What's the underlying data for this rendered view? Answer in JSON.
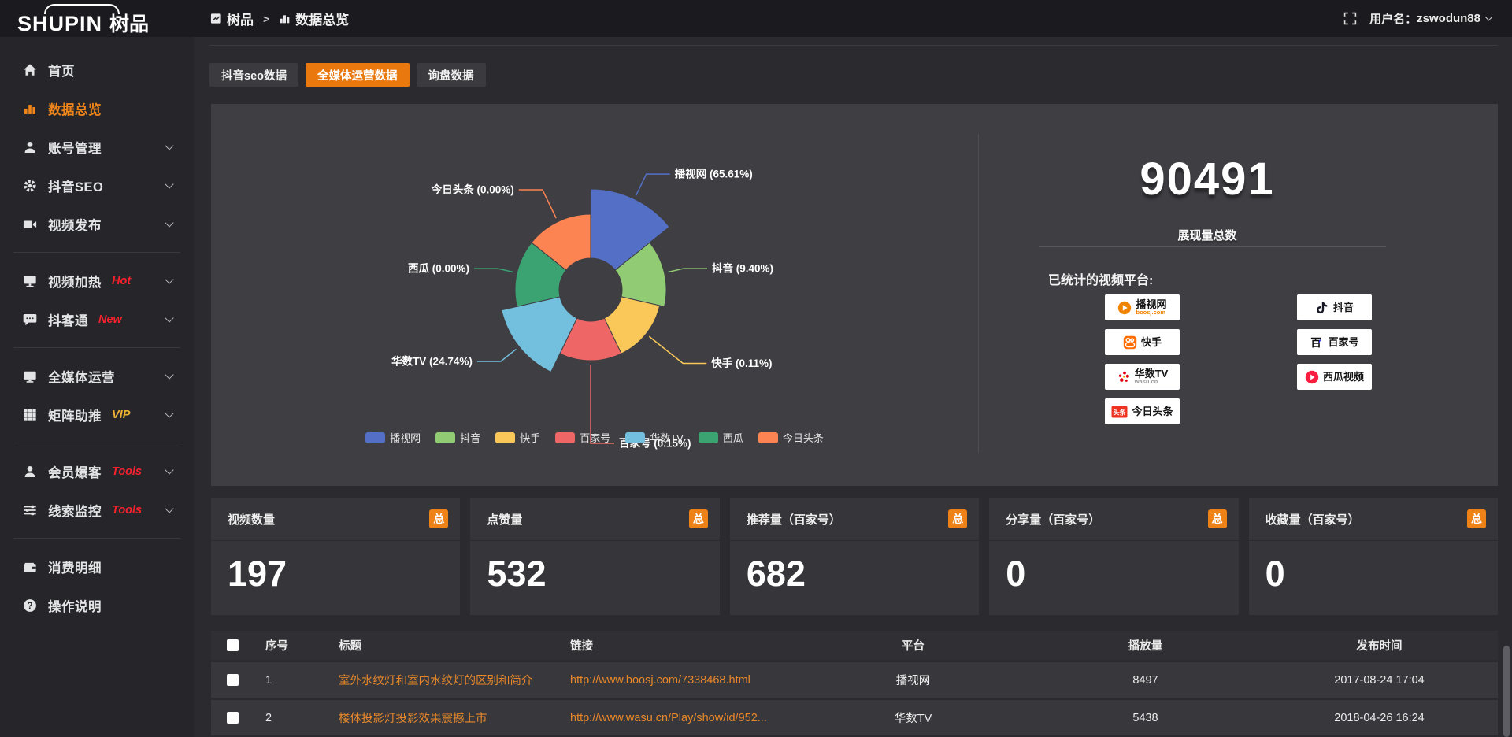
{
  "topbar": {
    "logo_main": "SHUPIN",
    "logo_suffix": "树品",
    "breadcrumb": [
      {
        "label": "树品",
        "icon": "chart-square-icon"
      },
      {
        "label": "数据总览",
        "icon": "bar-chart-icon"
      }
    ],
    "breadcrumb_separator": ">",
    "username_label": "用户名：",
    "username": "zswodun88"
  },
  "sidebar": {
    "items": [
      {
        "label": "首页",
        "icon": "home"
      },
      {
        "label": "数据总览",
        "icon": "bar-chart",
        "active": true
      },
      {
        "label": "账号管理",
        "icon": "user",
        "chevron": true
      },
      {
        "label": "抖音SEO",
        "icon": "gear",
        "chevron": true
      },
      {
        "label": "视频发布",
        "icon": "camera",
        "chevron": true,
        "divider_after": true
      },
      {
        "label": "视频加热",
        "icon": "heat-screen",
        "badge": "Hot",
        "badge_color": "#f5222d",
        "chevron": true
      },
      {
        "label": "抖客通",
        "icon": "chat",
        "badge": "New",
        "badge_color": "#f5222d",
        "chevron": true,
        "divider_after": true
      },
      {
        "label": "全媒体运营",
        "icon": "monitor",
        "chevron": true
      },
      {
        "label": "矩阵助推",
        "icon": "grid",
        "badge": "VIP",
        "badge_color": "#e9b235",
        "chevron": true,
        "divider_after": true
      },
      {
        "label": "会员爆客",
        "icon": "user",
        "badge": "Tools",
        "badge_color": "#f5222d",
        "chevron": true
      },
      {
        "label": "线索监控",
        "icon": "sliders",
        "badge": "Tools",
        "badge_color": "#f5222d",
        "chevron": true,
        "divider_after": true
      },
      {
        "label": "消费明细",
        "icon": "wallet"
      },
      {
        "label": "操作说明",
        "icon": "question"
      }
    ]
  },
  "tabs": [
    {
      "label": "抖音seo数据",
      "active": false
    },
    {
      "label": "全媒体运营数据",
      "active": true
    },
    {
      "label": "询盘数据",
      "active": false
    }
  ],
  "chart_data": {
    "type": "pie",
    "subtype": "nightingale-rose",
    "hole_radius": 40,
    "legend_position": "bottom",
    "slices": [
      {
        "name": "播视网",
        "percent": "65.61",
        "color": "#5470c6",
        "radius": 128,
        "label_ext": 30
      },
      {
        "name": "抖音",
        "percent": "9.40",
        "color": "#91cc75",
        "radius": 96,
        "label_ext": 20
      },
      {
        "name": "快手",
        "percent": "0.11",
        "color": "#fac858",
        "radius": 90,
        "label_ext": 55
      },
      {
        "name": "百家号",
        "percent": "0.15",
        "color": "#ee6666",
        "radius": 90,
        "label_ext": 100
      },
      {
        "name": "华数TV",
        "percent": "24.74",
        "color": "#73c0de",
        "radius": 116,
        "label_ext": 25
      },
      {
        "name": "西瓜",
        "percent": "0.00",
        "color": "#3ba272",
        "radius": 96,
        "label_ext": 20
      },
      {
        "name": "今日头条",
        "percent": "0.00",
        "color": "#fc8452",
        "radius": 96,
        "label_ext": 40
      }
    ],
    "legend": [
      "播视网",
      "抖音",
      "快手",
      "百家号",
      "华数TV",
      "西瓜",
      "今日头条"
    ]
  },
  "summary": {
    "value": "90491",
    "caption": "展现量总数",
    "platforms_title": "已统计的视频平台:",
    "platforms_col1": [
      {
        "name": "播视网",
        "sub": "boosj.com",
        "sub_color": "#f08300",
        "icon": "boosj-logo"
      },
      {
        "name": "快手",
        "icon": "kuaishou-logo"
      },
      {
        "name": "华数TV",
        "sub": "wasu.cn",
        "sub_color": "#999999",
        "icon": "wasu-logo"
      },
      {
        "name": "今日头条",
        "icon": "toutiao-logo",
        "icon_text": "头条"
      }
    ],
    "platforms_col2": [
      {
        "name": "抖音",
        "icon": "douyin-logo"
      },
      {
        "name": "百家号",
        "icon": "baijia-logo",
        "icon_text": "百"
      },
      {
        "name": "西瓜视频",
        "icon": "xigua-logo"
      }
    ]
  },
  "stat_cards": [
    {
      "label": "视频数量",
      "badge": "总",
      "value": "197"
    },
    {
      "label": "点赞量",
      "badge": "总",
      "value": "532"
    },
    {
      "label": "推荐量（百家号）",
      "badge": "总",
      "value": "682"
    },
    {
      "label": "分享量（百家号）",
      "badge": "总",
      "value": "0"
    },
    {
      "label": "收藏量（百家号）",
      "badge": "总",
      "value": "0"
    }
  ],
  "table": {
    "headers": [
      "",
      "序号",
      "标题",
      "链接",
      "平台",
      "播放量",
      "发布时间"
    ],
    "rows": [
      {
        "seq": "1",
        "title": "室外水纹灯和室内水纹灯的区别和简介",
        "link": "http://www.boosj.com/7338468.html",
        "platform": "播视网",
        "views": "8497",
        "time": "2017-08-24 17:04"
      },
      {
        "seq": "2",
        "title": "楼体投影灯投影效果震撼上市",
        "link": "http://www.wasu.cn/Play/show/id/952...",
        "platform": "华数TV",
        "views": "5438",
        "time": "2018-04-26 16:24"
      }
    ]
  },
  "colors": {
    "accent": "#e9780e",
    "badge": "#ef8216",
    "link": "#e8882a",
    "sidebar_active": "#f08519"
  }
}
